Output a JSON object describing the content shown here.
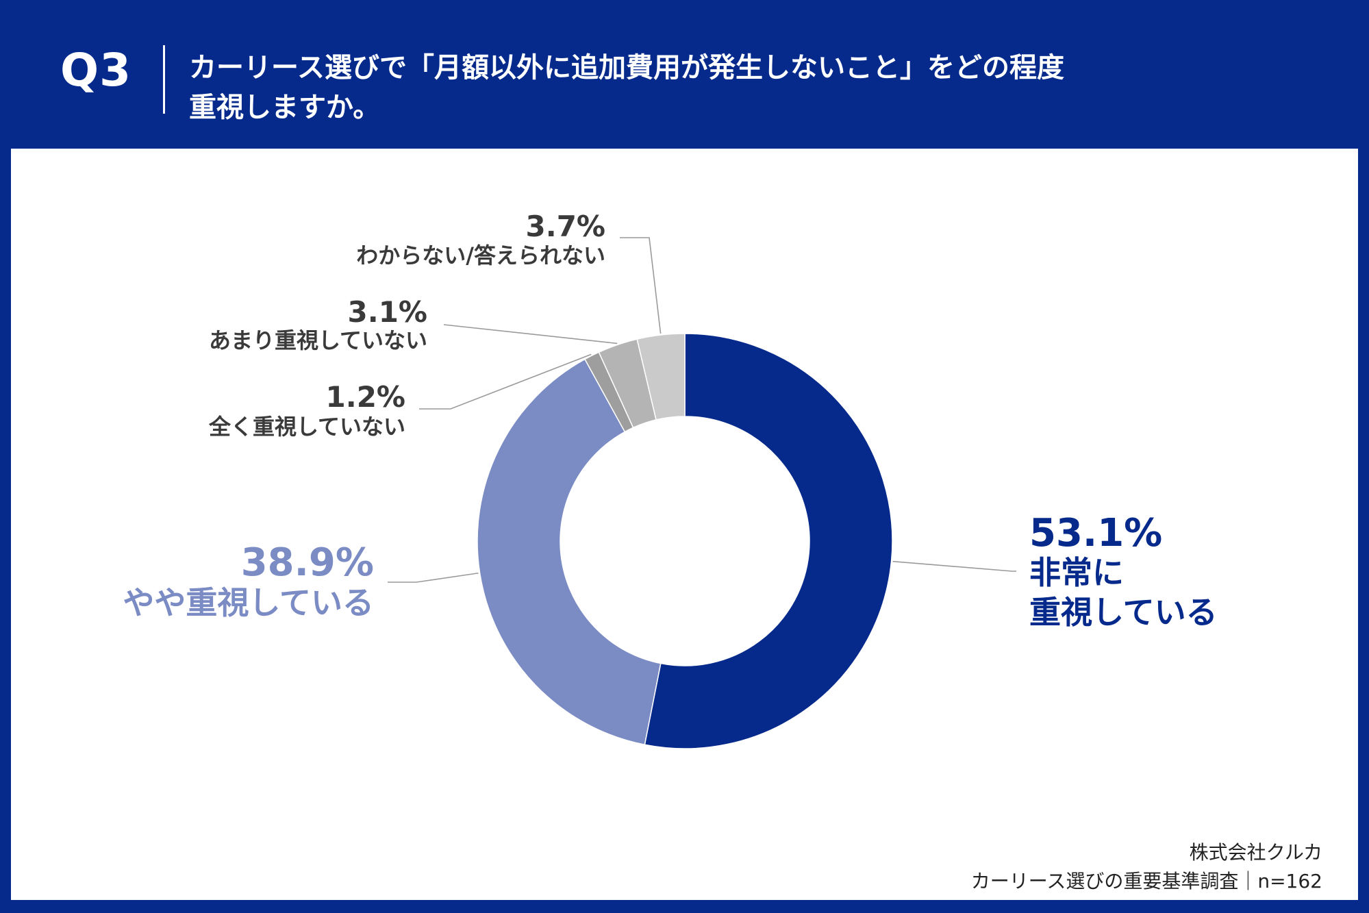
{
  "header": {
    "q_label": "Q3",
    "title_line1": "カーリース選びで「月額以外に追加費用が発生しないこと」をどの程度",
    "title_line2": "重視しますか。"
  },
  "chart_data": {
    "type": "pie",
    "donut": true,
    "slices": [
      {
        "label_lines": [
          "非常に",
          "重視している"
        ],
        "value": 53.1,
        "value_label": "53.1%",
        "color": "#052A8C"
      },
      {
        "label_lines": [
          "やや重視している"
        ],
        "value": 38.9,
        "value_label": "38.9%",
        "color": "#7B8BC4"
      },
      {
        "label_lines": [
          "全く重視していない"
        ],
        "value": 1.2,
        "value_label": "1.2%",
        "color": "#9E9E9E"
      },
      {
        "label_lines": [
          "あまり重視していない"
        ],
        "value": 3.1,
        "value_label": "3.1%",
        "color": "#B4B4B4"
      },
      {
        "label_lines": [
          "わからない/答えられない"
        ],
        "value": 3.7,
        "value_label": "3.7%",
        "color": "#CACACA"
      }
    ]
  },
  "footer": {
    "company": "株式会社クルカ",
    "survey": "カーリース選びの重要基準調査｜n=162"
  },
  "colors": {
    "brand_navy": "#052A8C",
    "light_blue": "#7B8BC4",
    "label_gray": "#3A3A3A"
  }
}
